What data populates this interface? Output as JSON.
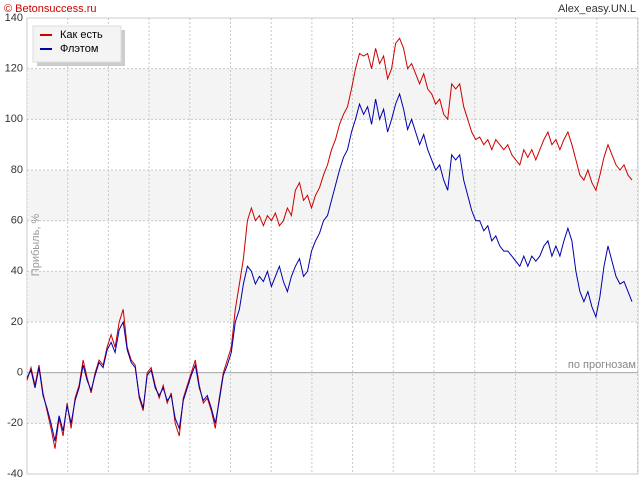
{
  "chart_data": {
    "type": "line",
    "source": "© Betonsuccess.ru",
    "title": "Alex_easy.UN.L",
    "y_label": "Прибыль, %",
    "annotation": "по прогнозам",
    "ylim": [
      -40,
      140
    ],
    "yticks": [
      -40,
      -20,
      0,
      20,
      40,
      60,
      80,
      100,
      120,
      140
    ],
    "grid": true,
    "legend": "top-left",
    "series": [
      {
        "name": "Как есть",
        "color": "#cc0000",
        "values": [
          -3,
          2,
          -5,
          3,
          -8,
          -15,
          -22,
          -30,
          -18,
          -25,
          -12,
          -22,
          -10,
          -5,
          5,
          -2,
          -8,
          0,
          5,
          3,
          10,
          15,
          10,
          20,
          25,
          10,
          5,
          3,
          -10,
          -15,
          0,
          2,
          -5,
          -10,
          -5,
          -12,
          -8,
          -20,
          -25,
          -10,
          -5,
          0,
          5,
          -5,
          -12,
          -10,
          -15,
          -22,
          -10,
          0,
          5,
          10,
          25,
          35,
          45,
          60,
          65,
          60,
          62,
          58,
          62,
          60,
          63,
          58,
          60,
          65,
          62,
          72,
          75,
          68,
          70,
          65,
          70,
          73,
          78,
          82,
          88,
          92,
          98,
          102,
          105,
          112,
          120,
          126,
          125,
          126,
          120,
          128,
          122,
          125,
          116,
          120,
          130,
          132,
          128,
          120,
          122,
          118,
          114,
          118,
          112,
          110,
          106,
          108,
          102,
          100,
          114,
          112,
          114,
          105,
          100,
          95,
          92,
          93,
          90,
          92,
          88,
          92,
          90,
          88,
          90,
          86,
          84,
          82,
          88,
          85,
          88,
          84,
          88,
          92,
          95,
          90,
          92,
          88,
          92,
          95,
          90,
          84,
          78,
          76,
          80,
          75,
          72,
          78,
          85,
          90,
          86,
          82,
          80,
          82,
          78,
          76
        ]
      },
      {
        "name": "Флэтом",
        "color": "#0000aa",
        "values": [
          -2,
          1,
          -6,
          2,
          -9,
          -14,
          -20,
          -27,
          -17,
          -23,
          -13,
          -20,
          -11,
          -6,
          3,
          -3,
          -7,
          -1,
          4,
          2,
          9,
          12,
          8,
          17,
          20,
          9,
          4,
          2,
          -9,
          -14,
          -1,
          1,
          -6,
          -9,
          -6,
          -11,
          -9,
          -18,
          -22,
          -11,
          -6,
          -1,
          3,
          -6,
          -11,
          -9,
          -14,
          -20,
          -11,
          -1,
          3,
          8,
          20,
          25,
          35,
          42,
          40,
          35,
          38,
          36,
          40,
          34,
          38,
          42,
          36,
          32,
          38,
          42,
          45,
          38,
          40,
          48,
          52,
          55,
          60,
          62,
          68,
          74,
          80,
          85,
          88,
          95,
          100,
          106,
          102,
          105,
          98,
          108,
          100,
          104,
          95,
          100,
          106,
          110,
          104,
          96,
          100,
          95,
          90,
          94,
          88,
          84,
          80,
          82,
          76,
          72,
          86,
          84,
          86,
          76,
          70,
          64,
          60,
          60,
          56,
          58,
          52,
          54,
          50,
          48,
          48,
          46,
          44,
          42,
          46,
          42,
          46,
          44,
          46,
          50,
          52,
          46,
          50,
          46,
          52,
          57,
          52,
          40,
          32,
          28,
          32,
          26,
          22,
          30,
          42,
          50,
          44,
          38,
          35,
          36,
          32,
          28
        ]
      }
    ]
  }
}
